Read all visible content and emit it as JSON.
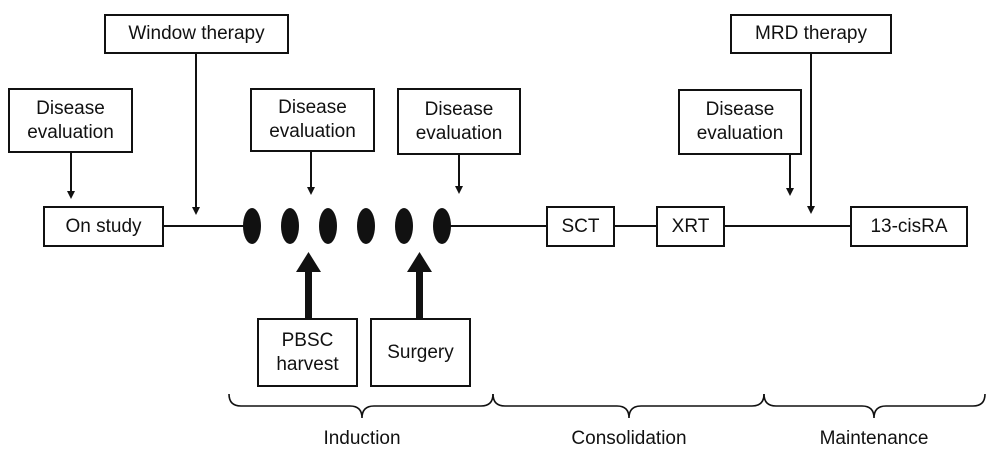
{
  "timeline_boxes": {
    "on_study": "On study",
    "sct": "SCT",
    "xrt": "XRT",
    "cis_ra": "13-cisRA"
  },
  "top_boxes": {
    "window_therapy": "Window therapy",
    "mrd_therapy": "MRD therapy",
    "disease_evaluation_line1": "Disease",
    "disease_evaluation_line2": "evaluation"
  },
  "bottom_boxes": {
    "pbsc_line1": "PBSC",
    "pbsc_line2": "harvest",
    "surgery": "Surgery"
  },
  "induction_cycles": 6,
  "phases": {
    "induction": "Induction",
    "consolidation": "Consolidation",
    "maintenance": "Maintenance"
  }
}
